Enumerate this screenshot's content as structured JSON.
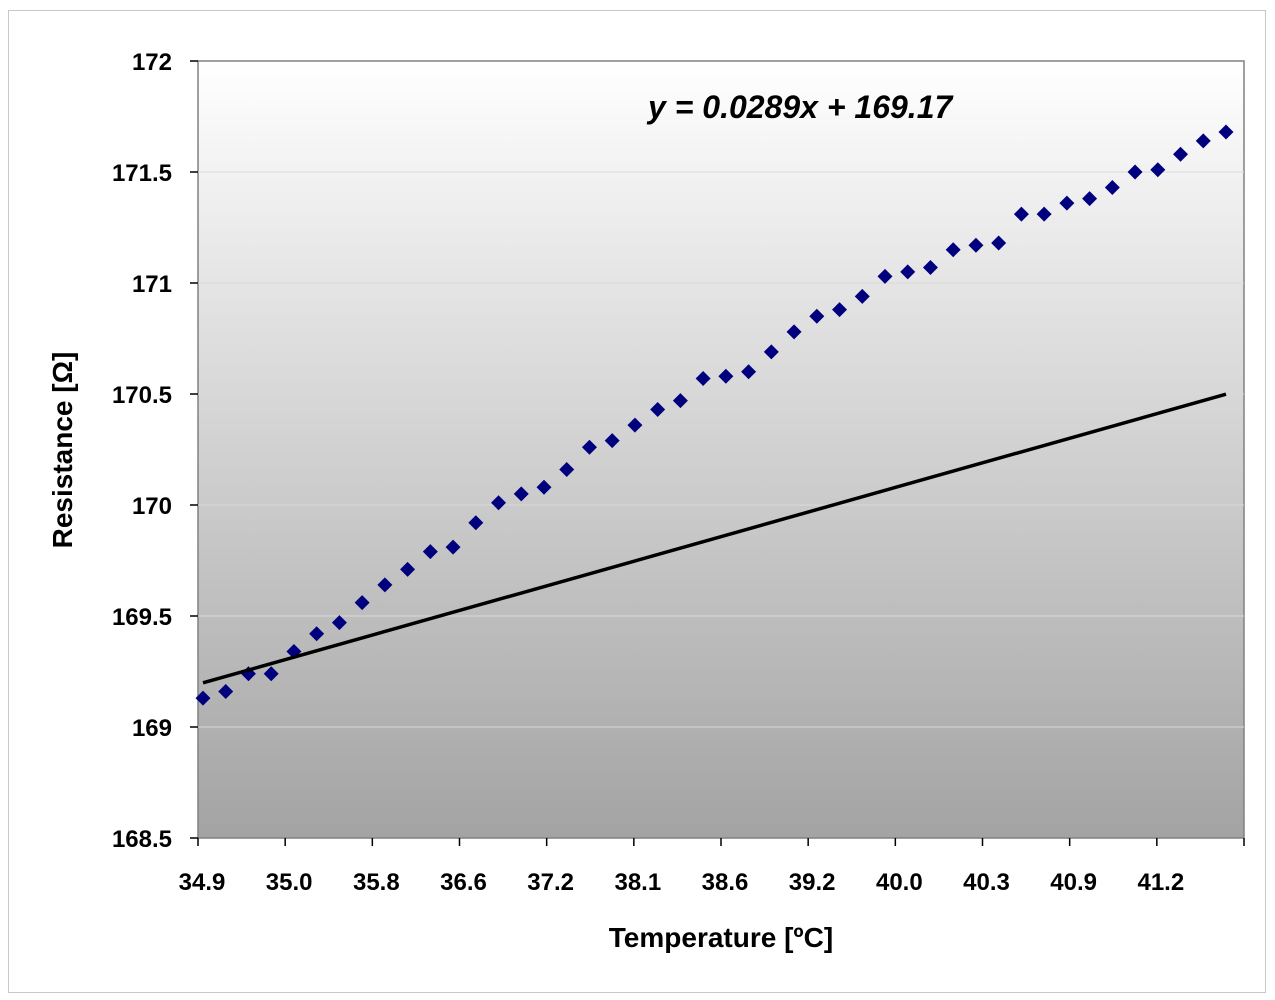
{
  "chart_data": {
    "type": "scatter",
    "xlabel": "Temperature [ºC]",
    "ylabel": "Resistance [Ω]",
    "ylim": [
      168.5,
      172
    ],
    "y_ticks": [
      "168.5",
      "169",
      "169.5",
      "170",
      "170.5",
      "171",
      "171.5",
      "172"
    ],
    "x_tick_labels": [
      "34.9",
      "35.0",
      "35.8",
      "36.6",
      "37.2",
      "38.1",
      "38.6",
      "39.2",
      "40.0",
      "40.3",
      "40.9",
      "41.2"
    ],
    "grid": "horizontal",
    "legend": "none",
    "trendline_equation": "y = 0.0289x + 169.17",
    "trendline": {
      "slope": 0.0289,
      "intercept": 169.17,
      "x_start": 1,
      "x_end": 46
    },
    "series": [
      {
        "x": [
          1,
          2,
          3,
          4,
          5,
          6,
          7,
          8,
          9,
          10,
          11,
          12,
          13,
          14,
          15,
          16,
          17,
          18,
          19,
          20,
          21,
          22,
          23,
          24,
          25,
          26,
          27,
          28,
          29,
          30,
          31,
          32,
          33,
          34,
          35,
          36,
          37,
          38,
          39,
          40,
          41,
          42,
          43,
          44,
          45,
          46
        ],
        "values": [
          169.13,
          169.16,
          169.24,
          169.24,
          169.34,
          169.42,
          169.47,
          169.56,
          169.64,
          169.71,
          169.79,
          169.81,
          169.92,
          170.01,
          170.05,
          170.08,
          170.16,
          170.26,
          170.29,
          170.36,
          170.43,
          170.47,
          170.57,
          170.58,
          170.6,
          170.69,
          170.78,
          170.85,
          170.88,
          170.94,
          171.03,
          171.05,
          171.07,
          171.15,
          171.17,
          171.18,
          171.31,
          171.31,
          171.36,
          171.38,
          171.43,
          171.5,
          171.51,
          171.58,
          171.64,
          171.68
        ]
      }
    ],
    "colors": {
      "marker": "#00007f",
      "trendline": "#000000",
      "plot_top": "#ffffff",
      "plot_bottom": "#a3a3a3"
    }
  }
}
